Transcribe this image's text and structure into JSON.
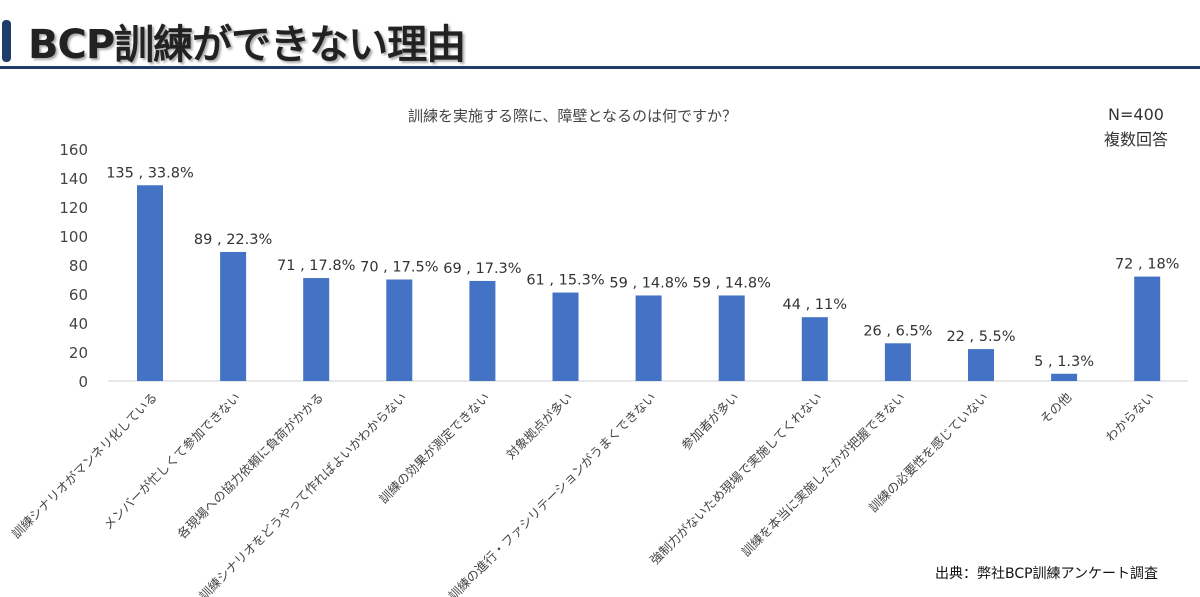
{
  "header": {
    "title": "BCP訓練ができない理由"
  },
  "note": {
    "n": "N=400",
    "multi": "複数回答"
  },
  "source": "出典：弊社BCP訓練アンケート調査",
  "colors": {
    "bar": "#4472c4",
    "accent": "#1f3d6b"
  },
  "chart_data": {
    "type": "bar",
    "title": "訓練を実施する際に、障壁となるのは何ですか？",
    "xlabel": "",
    "ylabel": "",
    "ylim": [
      0,
      160
    ],
    "yticks": [
      0,
      20,
      40,
      60,
      80,
      100,
      120,
      140,
      160
    ],
    "grid": false,
    "categories": [
      "訓練シナリオがマンネリ化している",
      "メンバーが忙しくて参加できない",
      "各現場への協力依頼に負荷がかかる",
      "訓練シナリオをどうやって作ればよいかわからない",
      "訓練の効果が測定できない",
      "対象拠点が多い",
      "訓練の進行・ファシリテーションがうまくできない",
      "参加者が多い",
      "強制力がないため現場で実施してくれない",
      "訓練を本当に実施したかが把握できない",
      "訓練の必要性を感じていない",
      "その他",
      "わからない"
    ],
    "values": [
      135,
      89,
      71,
      70,
      69,
      61,
      59,
      59,
      44,
      26,
      22,
      5,
      72
    ],
    "data_labels": [
      "135 , 33.8%",
      "89 , 22.3%",
      "71 , 17.8%",
      "70 , 17.5%",
      "69 , 17.3%",
      "61 , 15.3%",
      "59 , 14.8%",
      "59 , 14.8%",
      "44 , 11%",
      "26 , 6.5%",
      "22 , 5.5%",
      "5 , 1.3%",
      "72 , 18%"
    ]
  }
}
